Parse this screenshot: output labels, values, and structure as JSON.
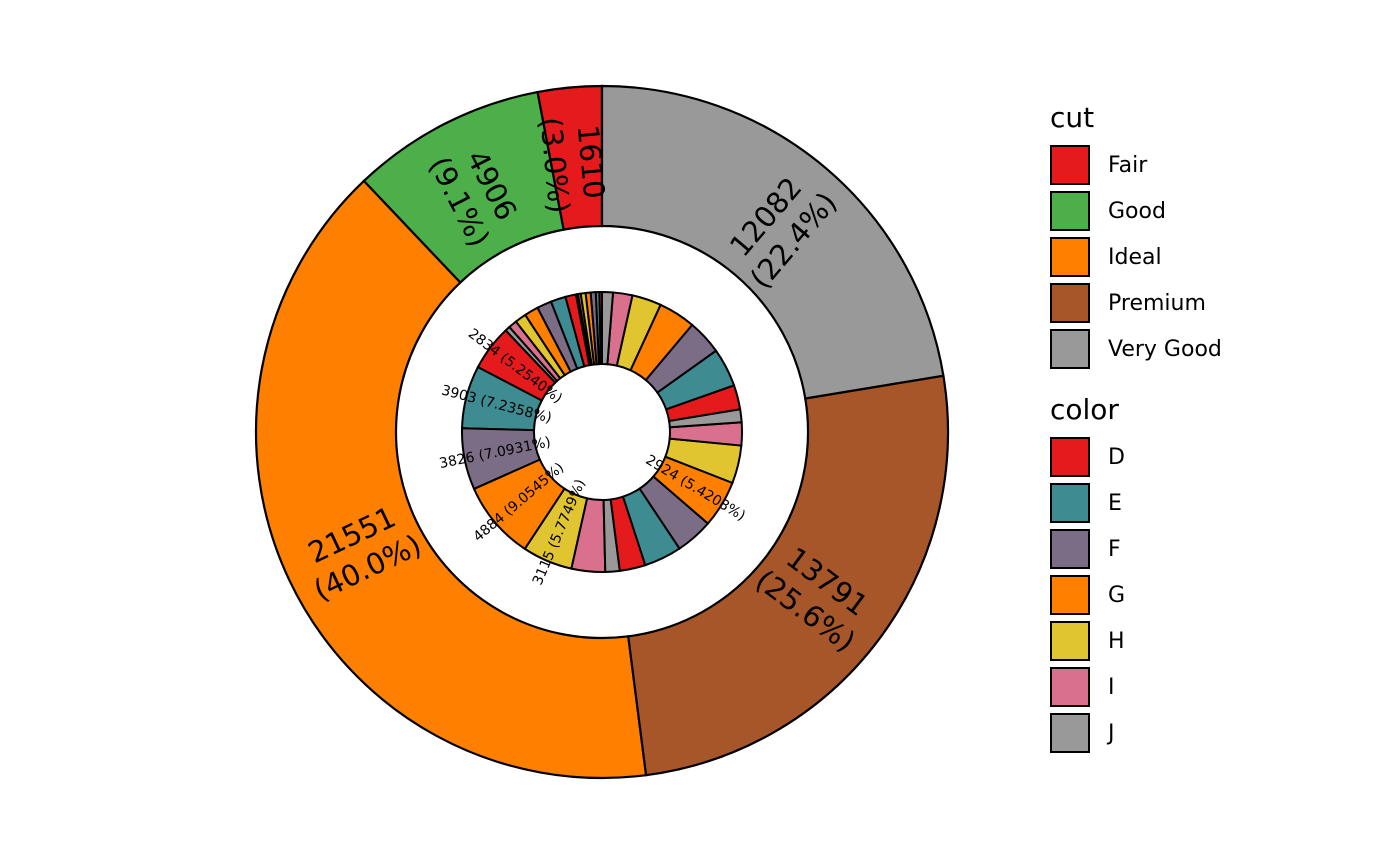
{
  "chart_data": {
    "type": "pie",
    "subtype": "nested-donut",
    "total": 53940,
    "outer": {
      "variable": "cut",
      "categories": [
        "Fair",
        "Good",
        "Ideal",
        "Premium",
        "Very Good"
      ],
      "values": [
        1610,
        4906,
        21551,
        13791,
        12082
      ],
      "labels": [
        {
          "value": "1610",
          "percent": "(3.0%)"
        },
        {
          "value": "4906",
          "percent": "(9.1%)"
        },
        {
          "value": "21551",
          "percent": "(40.0%)"
        },
        {
          "value": "13791",
          "percent": "(25.6%)"
        },
        {
          "value": "12082",
          "percent": "(22.4%)"
        }
      ]
    },
    "inner": {
      "variable": "color",
      "categories": [
        "D",
        "E",
        "F",
        "G",
        "H",
        "I",
        "J"
      ],
      "values_by_cut": {
        "Fair": [
          163,
          224,
          312,
          314,
          303,
          175,
          119
        ],
        "Good": [
          662,
          933,
          909,
          871,
          702,
          522,
          307
        ],
        "Ideal": [
          2834,
          3903,
          3826,
          4884,
          3115,
          2093,
          896
        ],
        "Premium": [
          1603,
          2337,
          2331,
          2924,
          2360,
          1428,
          808
        ],
        "Very Good": [
          1513,
          2400,
          2164,
          2299,
          1824,
          1204,
          678
        ]
      },
      "printed_labels": [
        {
          "cut": "Ideal",
          "color": "D",
          "text": "2834 (5.2540%)"
        },
        {
          "cut": "Ideal",
          "color": "E",
          "text": "3903 (7.2358%)"
        },
        {
          "cut": "Ideal",
          "color": "F",
          "text": "3826 (7.0931%)"
        },
        {
          "cut": "Ideal",
          "color": "G",
          "text": "4884 (9.0545%)"
        },
        {
          "cut": "Ideal",
          "color": "H",
          "text": "3115 (5.7749%)"
        },
        {
          "cut": "Premium",
          "color": "G",
          "text": "2924 (5.4208%)"
        }
      ]
    },
    "segment_order": [
      "Fair",
      "Good",
      "Ideal",
      "Premium",
      "Very Good"
    ],
    "direction": "counterclockwise from top"
  },
  "legend": {
    "cut": {
      "title": "cut",
      "items": [
        {
          "label": "Fair",
          "color": "#e41a1c"
        },
        {
          "label": "Good",
          "color": "#4daf4a"
        },
        {
          "label": "Ideal",
          "color": "#ff7f00"
        },
        {
          "label": "Premium",
          "color": "#a65628"
        },
        {
          "label": "Very Good",
          "color": "#999999"
        }
      ]
    },
    "color": {
      "title": "color",
      "items": [
        {
          "label": "D",
          "color": "#e41a1c"
        },
        {
          "label": "E",
          "color": "#3e8c91"
        },
        {
          "label": "F",
          "color": "#7b6d85"
        },
        {
          "label": "G",
          "color": "#ff7f00"
        },
        {
          "label": "H",
          "color": "#e0c531"
        },
        {
          "label": "I",
          "color": "#d9708e"
        },
        {
          "label": "J",
          "color": "#999999"
        }
      ]
    }
  }
}
